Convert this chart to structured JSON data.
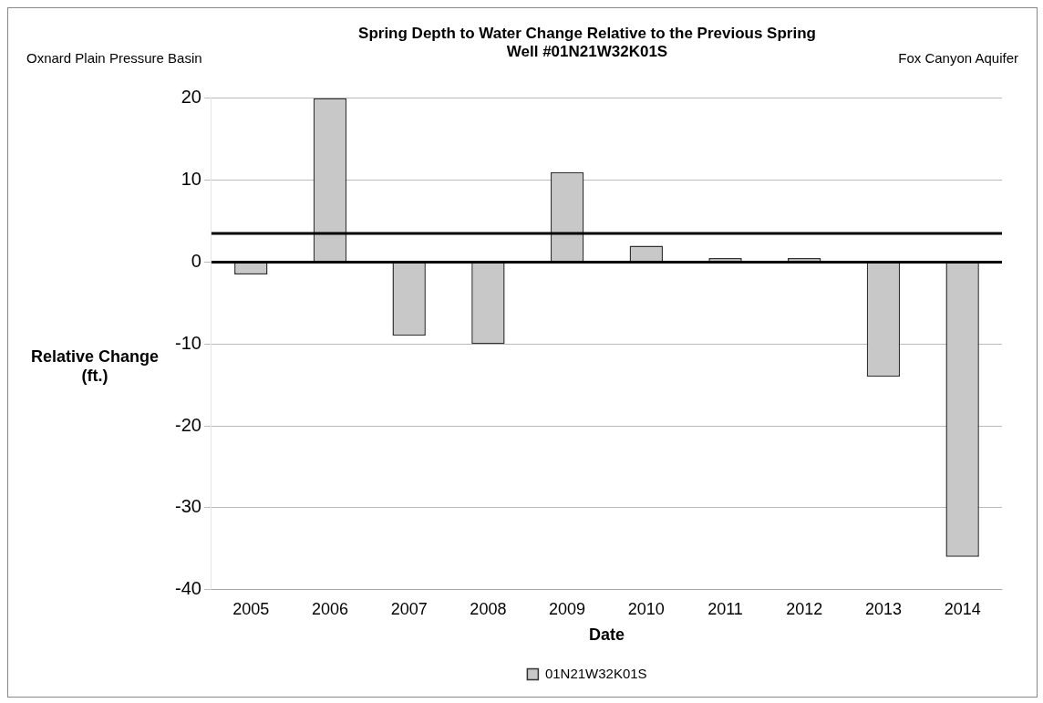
{
  "chart_data": {
    "type": "bar",
    "title": "Spring Depth to Water Change Relative to the Previous Spring",
    "subtitle": "Well #01N21W32K01S",
    "xlabel": "Date",
    "ylabel": "Relative Change (ft.)",
    "annotations": [
      "Oxnard Plain Pressure Basin",
      "Fox Canyon Aquifer"
    ],
    "categories": [
      "2005",
      "2006",
      "2007",
      "2008",
      "2009",
      "2010",
      "2011",
      "2012",
      "2013",
      "2014"
    ],
    "series": [
      {
        "name": "01N21W32K01S",
        "color": "#c8c8c8",
        "values": [
          -1.5,
          20,
          -9,
          -10,
          11,
          2,
          0.5,
          0.5,
          -14,
          -36
        ]
      }
    ],
    "ylim": [
      -40,
      20
    ],
    "yticks": [
      -40,
      -30,
      -20,
      -10,
      0,
      10,
      20
    ],
    "grid": "y",
    "legend": "bottom",
    "ref_lines": [
      {
        "axis": "y",
        "value": 3.5,
        "color": "#000000"
      },
      {
        "axis": "y",
        "value": 0,
        "color": "#000000"
      }
    ]
  }
}
